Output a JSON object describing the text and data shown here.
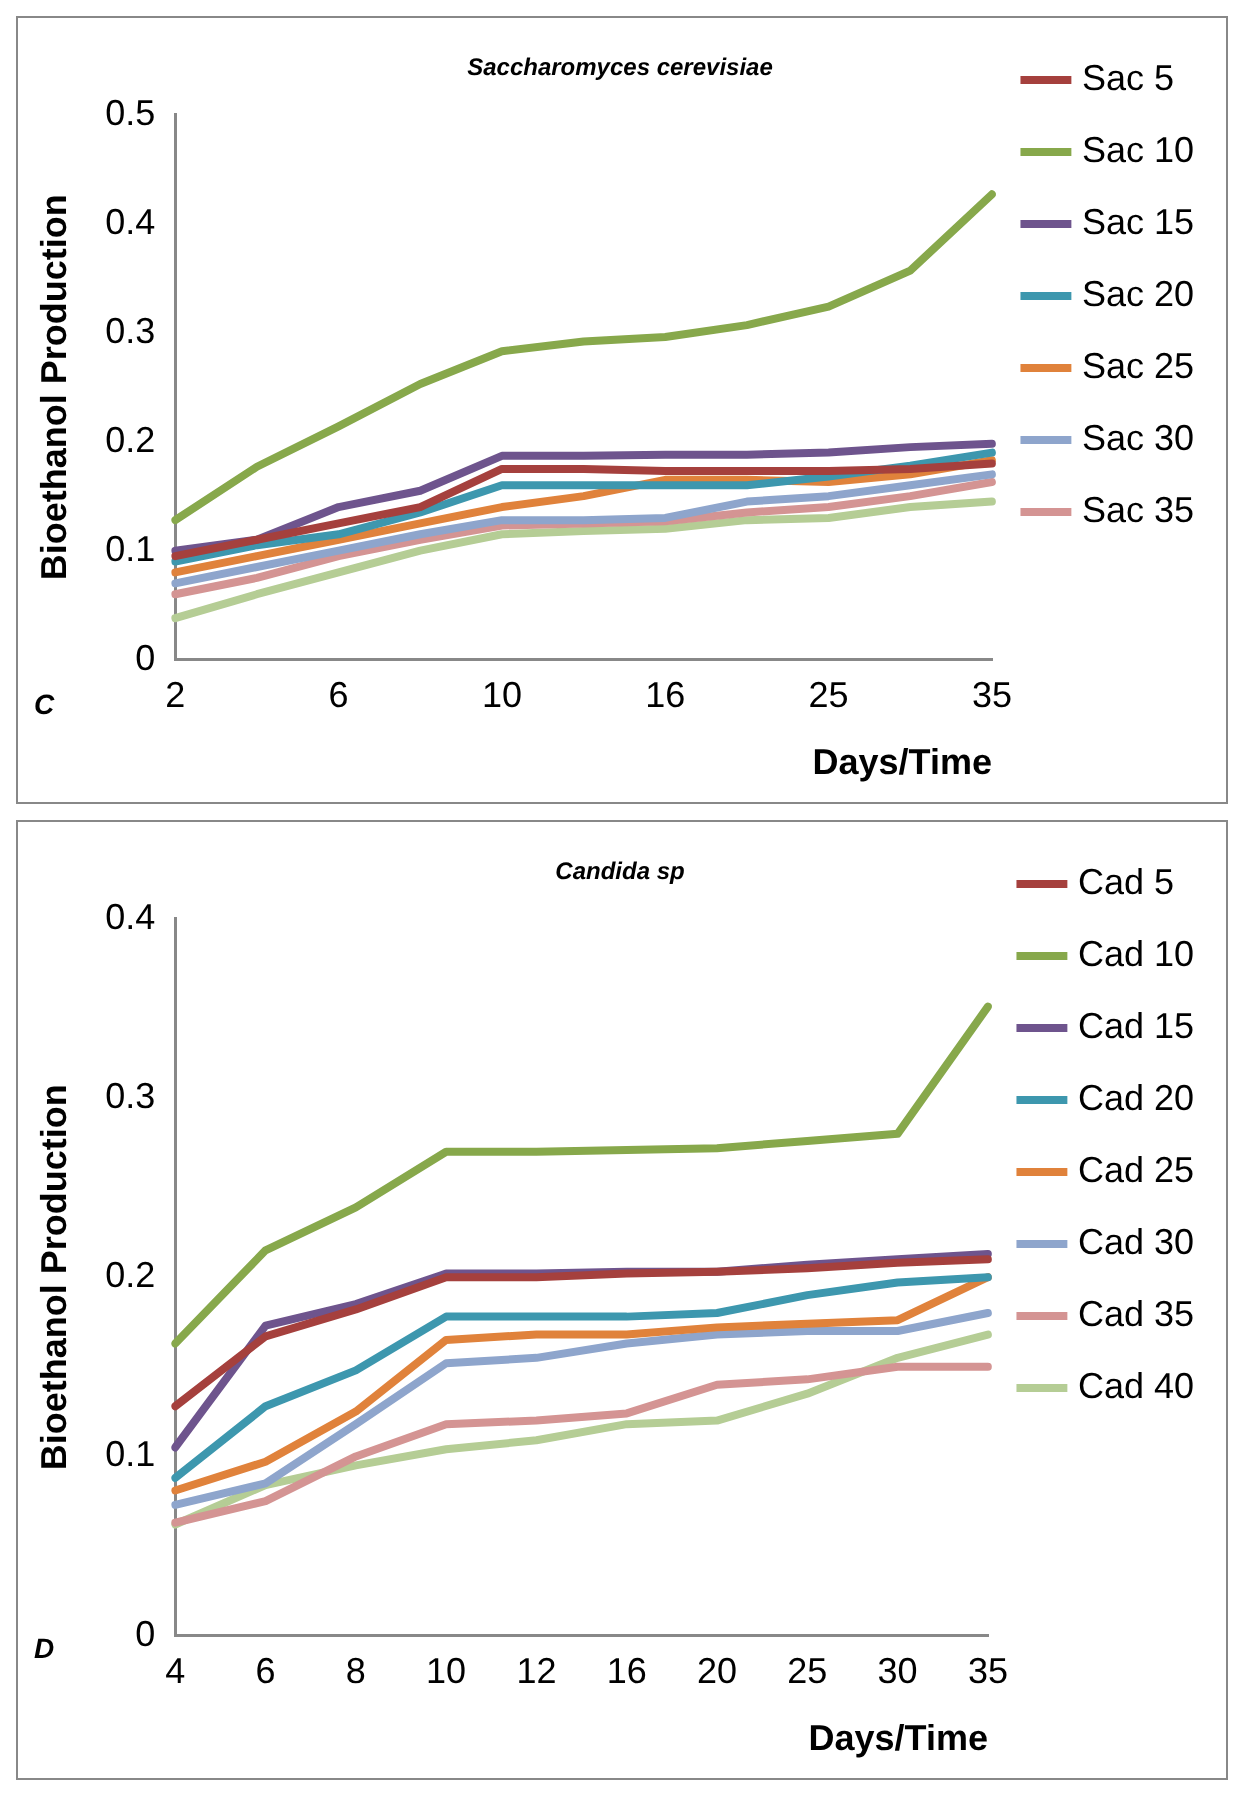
{
  "chart_data": [
    {
      "type": "line",
      "title": "Saccharomyces cerevisiae",
      "xlabel": "Days/Time",
      "ylabel": "Bioethanol Production",
      "annotations": [
        "C"
      ],
      "categories": [
        "2",
        null,
        "6",
        null,
        "10",
        null,
        "16",
        null,
        "25",
        null,
        "35"
      ],
      "ylim": [
        0,
        0.5
      ],
      "yticks": [
        0,
        0.1,
        0.2,
        0.3,
        0.4,
        0.5
      ],
      "grid": false,
      "legend": "right",
      "marker": "none",
      "series": [
        {
          "name": "Sac 5",
          "color": "#a5403d",
          "values": [
            0.095,
            0.11,
            0.125,
            0.14,
            0.175,
            0.175,
            0.173,
            0.173,
            0.173,
            0.175,
            0.18
          ]
        },
        {
          "name": "Sac 10",
          "color": "#87a84b",
          "values": [
            0.128,
            0.177,
            0.214,
            0.253,
            0.283,
            0.292,
            0.296,
            0.307,
            0.324,
            0.357,
            0.427
          ]
        },
        {
          "name": "Sac 15",
          "color": "#6e548d",
          "values": [
            0.1,
            0.11,
            0.14,
            0.155,
            0.187,
            0.187,
            0.188,
            0.188,
            0.19,
            0.195,
            0.198
          ]
        },
        {
          "name": "Sac 20",
          "color": "#3d97ae",
          "values": [
            0.09,
            0.105,
            0.115,
            0.135,
            0.16,
            0.16,
            0.16,
            0.16,
            0.168,
            0.178,
            0.19
          ]
        },
        {
          "name": "Sac 25",
          "color": "#e0823b",
          "values": [
            0.08,
            0.095,
            0.11,
            0.125,
            0.14,
            0.15,
            0.165,
            0.165,
            0.163,
            0.17,
            0.183
          ]
        },
        {
          "name": "Sac 30",
          "color": "#8ea5cc",
          "values": [
            0.07,
            0.085,
            0.1,
            0.115,
            0.128,
            0.128,
            0.13,
            0.145,
            0.15,
            0.16,
            0.17
          ]
        },
        {
          "name": "Sac 35",
          "color": "#d49493",
          "values": [
            0.06,
            0.075,
            0.095,
            0.11,
            0.123,
            0.125,
            0.127,
            0.135,
            0.14,
            0.15,
            0.163
          ]
        },
        {
          "color": "#b5cd95",
          "values": [
            0.038,
            0.06,
            0.08,
            0.1,
            0.115,
            0.118,
            0.12,
            0.128,
            0.13,
            0.14,
            0.145
          ]
        }
      ]
    },
    {
      "type": "line",
      "title": "Candida sp",
      "xlabel": "Days/Time",
      "ylabel": "Bioethanol Production",
      "annotations": [
        "D"
      ],
      "categories": [
        "4",
        "6",
        "8",
        "10",
        "12",
        "16",
        "20",
        "25",
        "30",
        "35"
      ],
      "ylim": [
        0,
        0.4
      ],
      "yticks": [
        0,
        0.1,
        0.2,
        0.3,
        0.4
      ],
      "grid": false,
      "legend": "right",
      "marker": "none",
      "series": [
        {
          "name": "Cad 5",
          "color": "#a5403d",
          "values": [
            0.128,
            0.167,
            0.182,
            0.2,
            0.2,
            0.202,
            0.203,
            0.205,
            0.208,
            0.21
          ]
        },
        {
          "name": "Cad 10",
          "color": "#87a84b",
          "values": [
            0.163,
            0.215,
            0.239,
            0.27,
            0.27,
            0.271,
            0.272,
            0.276,
            0.28,
            0.351
          ]
        },
        {
          "name": "Cad 15",
          "color": "#6e548d",
          "values": [
            0.105,
            0.173,
            0.185,
            0.202,
            0.202,
            0.203,
            0.203,
            0.207,
            0.21,
            0.213
          ]
        },
        {
          "name": "Cad 20",
          "color": "#3d97ae",
          "values": [
            0.088,
            0.128,
            0.148,
            0.178,
            0.178,
            0.178,
            0.18,
            0.19,
            0.197,
            0.2
          ]
        },
        {
          "name": "Cad 25",
          "color": "#e0823b",
          "values": [
            0.081,
            0.097,
            0.125,
            0.165,
            0.168,
            0.168,
            0.172,
            0.174,
            0.176,
            0.2
          ]
        },
        {
          "name": "Cad 30",
          "color": "#8ea5cc",
          "values": [
            0.073,
            0.085,
            0.118,
            0.152,
            0.155,
            0.163,
            0.168,
            0.17,
            0.17,
            0.18
          ]
        },
        {
          "name": "Cad 35",
          "color": "#d49493",
          "values": [
            0.063,
            0.075,
            0.1,
            0.118,
            0.12,
            0.124,
            0.14,
            0.143,
            0.15,
            0.15
          ]
        },
        {
          "name": "Cad 40",
          "color": "#b5cd95",
          "values": [
            0.062,
            0.084,
            0.095,
            0.104,
            0.109,
            0.118,
            0.12,
            0.135,
            0.155,
            0.168
          ]
        }
      ]
    }
  ]
}
